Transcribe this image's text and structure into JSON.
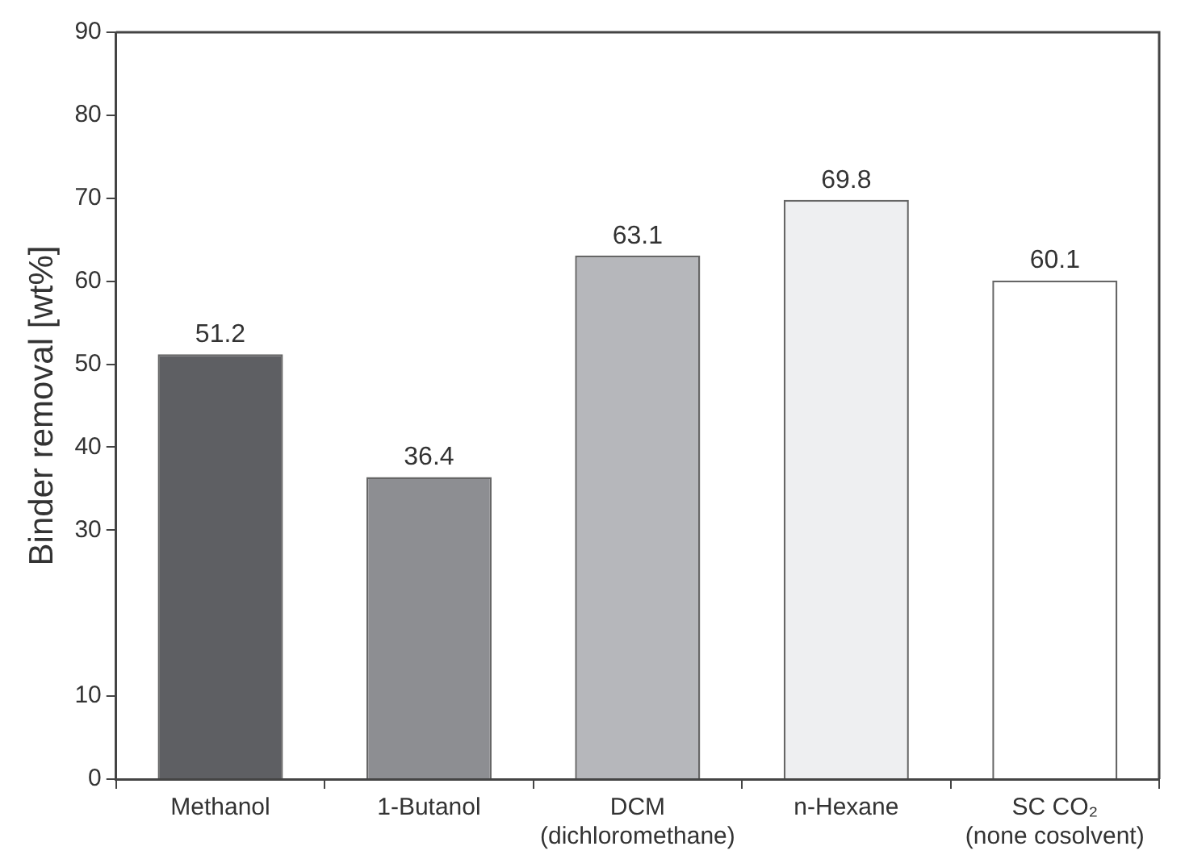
{
  "chart_data": {
    "type": "bar",
    "ylabel": "Binder removal [wt%]",
    "categories": [
      "Methanol",
      "1-Butanol",
      "DCM\n(dichloromethane)",
      "n-Hexane",
      "SC CO₂\n(none cosolvent)"
    ],
    "values": [
      51.2,
      36.4,
      63.1,
      69.8,
      60.1
    ],
    "colors": [
      "#5e5f63",
      "#8d8e92",
      "#b6b7bb",
      "#eeeff1",
      "#ffffff"
    ],
    "ylim": [
      0,
      90
    ],
    "yticks": [
      0,
      10,
      30,
      40,
      50,
      60,
      70,
      80,
      90
    ],
    "data_labels": true,
    "grid": false,
    "legend": false
  }
}
